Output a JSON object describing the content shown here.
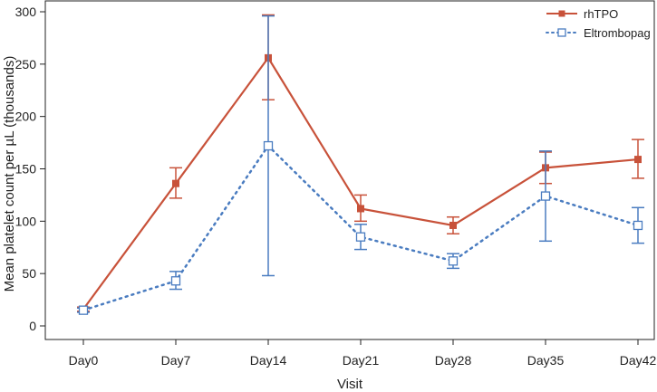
{
  "chart_data": {
    "type": "line",
    "title": "",
    "xlabel": "Visit",
    "ylabel": "Mean platelet count per µL (thousands)",
    "categories": [
      "Day0",
      "Day7",
      "Day14",
      "Day21",
      "Day28",
      "Day35",
      "Day42"
    ],
    "ylim": [
      0,
      300
    ],
    "yticks": [
      0,
      50,
      100,
      150,
      200,
      250,
      300
    ],
    "grid": false,
    "legend_position": "top-right",
    "series": [
      {
        "name": "rhTPO",
        "color": "#c8523a",
        "marker": "filled-square",
        "line_style": "solid",
        "values": [
          16,
          136,
          256,
          112,
          96,
          151,
          159
        ],
        "error_low": [
          14,
          122,
          216,
          100,
          88,
          136,
          141
        ],
        "error_high": [
          18,
          151,
          297,
          125,
          104,
          166,
          178
        ]
      },
      {
        "name": "Eltrombopag",
        "color": "#4a7cc0",
        "marker": "open-square",
        "line_style": "dotted",
        "values": [
          15,
          43,
          172,
          85,
          62,
          124,
          96
        ],
        "error_low": [
          13,
          35,
          48,
          73,
          55,
          81,
          79
        ],
        "error_high": [
          17,
          52,
          296,
          97,
          69,
          167,
          113
        ]
      }
    ]
  }
}
